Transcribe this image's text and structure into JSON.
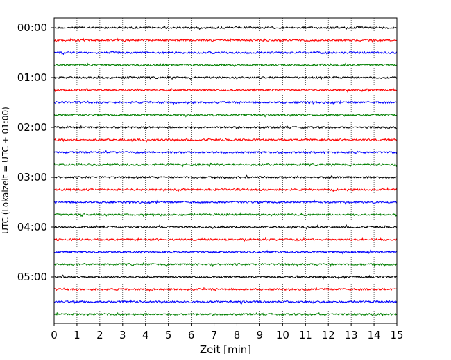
{
  "chart_data": {
    "type": "line",
    "title": "",
    "xlabel": "Zeit  [min]",
    "ylabel": "UTC (Lokalzeit = UTC + 01:00)",
    "xlim": [
      0,
      15
    ],
    "x_ticks": [
      "0",
      "1",
      "2",
      "3",
      "4",
      "5",
      "6",
      "7",
      "8",
      "9",
      "10",
      "11",
      "12",
      "13",
      "14",
      "15"
    ],
    "y_tick_labels": [
      "00:00",
      "01:00",
      "02:00",
      "03:00",
      "04:00",
      "05:00"
    ],
    "grid": "vertical dotted",
    "trace_interval_minutes": 15,
    "trace_count": 24,
    "trace_colors": [
      "#000000",
      "#ff0000",
      "#0000ff",
      "#008000"
    ],
    "series": [
      {
        "start": "00:00",
        "color": "#000000"
      },
      {
        "start": "00:15",
        "color": "#ff0000"
      },
      {
        "start": "00:30",
        "color": "#0000ff"
      },
      {
        "start": "00:45",
        "color": "#008000"
      },
      {
        "start": "01:00",
        "color": "#000000"
      },
      {
        "start": "01:15",
        "color": "#ff0000"
      },
      {
        "start": "01:30",
        "color": "#0000ff"
      },
      {
        "start": "01:45",
        "color": "#008000"
      },
      {
        "start": "02:00",
        "color": "#000000"
      },
      {
        "start": "02:15",
        "color": "#ff0000"
      },
      {
        "start": "02:30",
        "color": "#0000ff"
      },
      {
        "start": "02:45",
        "color": "#008000"
      },
      {
        "start": "03:00",
        "color": "#000000"
      },
      {
        "start": "03:15",
        "color": "#ff0000"
      },
      {
        "start": "03:30",
        "color": "#0000ff"
      },
      {
        "start": "03:45",
        "color": "#008000"
      },
      {
        "start": "04:00",
        "color": "#000000"
      },
      {
        "start": "04:15",
        "color": "#ff0000"
      },
      {
        "start": "04:30",
        "color": "#0000ff"
      },
      {
        "start": "04:45",
        "color": "#008000"
      },
      {
        "start": "05:00",
        "color": "#000000"
      },
      {
        "start": "05:15",
        "color": "#ff0000"
      },
      {
        "start": "05:30",
        "color": "#0000ff"
      },
      {
        "start": "05:45",
        "color": "#008000"
      }
    ]
  }
}
